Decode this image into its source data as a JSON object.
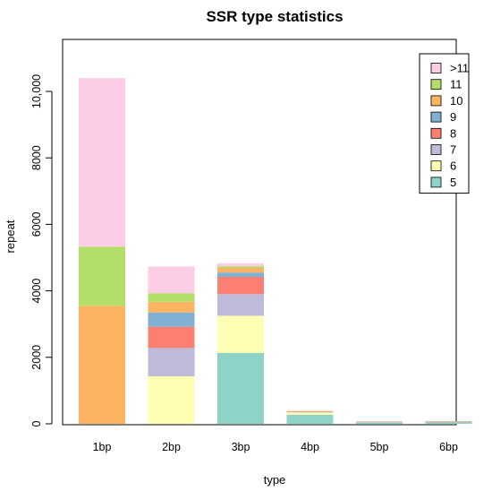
{
  "chart_data": {
    "type": "bar",
    "stacked": true,
    "title": "SSR type statistics",
    "xlabel": "type",
    "ylabel": "repeat",
    "categories": [
      "1bp",
      "2bp",
      "3bp",
      "4bp",
      "5bp",
      "6bp"
    ],
    "ylim": [
      0,
      11000
    ],
    "yticks": [
      0,
      2000,
      4000,
      6000,
      8000,
      10000
    ],
    "ytick_labels": [
      "0",
      "2000",
      "4000",
      "6000",
      "8000",
      "10,000"
    ],
    "legend_position": "top-right",
    "series": [
      {
        "name": "5",
        "color": "#8dd3c7",
        "values": [
          0,
          0,
          2130,
          270,
          50,
          55
        ]
      },
      {
        "name": "6",
        "color": "#ffffb3",
        "values": [
          0,
          1430,
          1120,
          70,
          10,
          15
        ]
      },
      {
        "name": "7",
        "color": "#bebada",
        "values": [
          0,
          850,
          650,
          20,
          5,
          5
        ]
      },
      {
        "name": "8",
        "color": "#fb8072",
        "values": [
          0,
          640,
          520,
          10,
          5,
          5
        ]
      },
      {
        "name": "9",
        "color": "#80b1d3",
        "values": [
          0,
          430,
          130,
          5,
          0,
          0
        ]
      },
      {
        "name": "10",
        "color": "#fdb462",
        "values": [
          3550,
          320,
          140,
          5,
          0,
          0
        ]
      },
      {
        "name": "11",
        "color": "#b3de69",
        "values": [
          1780,
          260,
          50,
          5,
          0,
          0
        ]
      },
      {
        "name": ">11",
        "color": "#fccde5",
        "values": [
          5070,
          800,
          90,
          10,
          0,
          0
        ]
      }
    ]
  }
}
